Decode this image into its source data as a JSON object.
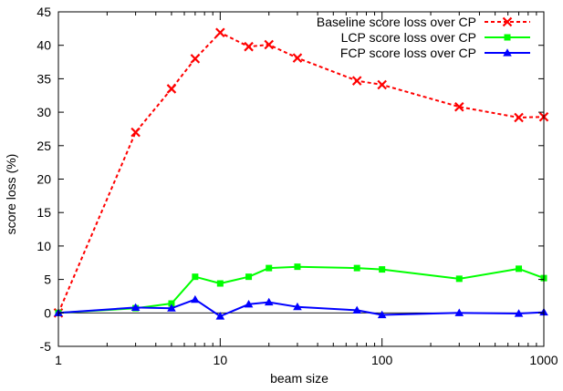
{
  "chart_data": {
    "type": "line",
    "xlabel": "beam size",
    "ylabel": "score loss (%)",
    "x_scale": "log",
    "xlim": [
      1,
      1000
    ],
    "ylim": [
      -5,
      45
    ],
    "x_ticks": [
      1,
      10,
      100,
      1000
    ],
    "x_tick_labels": [
      "1",
      "10",
      "100",
      "1000"
    ],
    "y_ticks": [
      -5,
      0,
      5,
      10,
      15,
      20,
      25,
      30,
      35,
      40,
      45
    ],
    "y_tick_labels": [
      "-5",
      "0",
      "5",
      "10",
      "15",
      "20",
      "25",
      "30",
      "35",
      "40",
      "45"
    ],
    "zero_line": true,
    "grid": false,
    "legend_position": "top-right",
    "series": [
      {
        "name": "Baseline score loss over CP",
        "color": "#ff0000",
        "marker": "x",
        "line_style": "dashed",
        "x": [
          1,
          3,
          5,
          7,
          10,
          15,
          20,
          30,
          70,
          100,
          300,
          700,
          1000
        ],
        "y": [
          0,
          27.0,
          33.5,
          38.0,
          41.9,
          39.8,
          40.1,
          38.1,
          34.7,
          34.1,
          30.8,
          29.2,
          29.3
        ]
      },
      {
        "name": "LCP score loss over CP",
        "color": "#00ff00",
        "marker": "square",
        "line_style": "solid",
        "x": [
          1,
          3,
          5,
          7,
          10,
          15,
          20,
          30,
          70,
          100,
          300,
          700,
          1000
        ],
        "y": [
          0,
          0.7,
          1.4,
          5.4,
          4.4,
          5.4,
          6.7,
          6.9,
          6.7,
          6.5,
          5.1,
          6.6,
          5.2
        ]
      },
      {
        "name": "FCP score loss over CP",
        "color": "#0000ff",
        "marker": "triangle",
        "line_style": "solid",
        "x": [
          1,
          3,
          5,
          7,
          10,
          15,
          20,
          30,
          70,
          100,
          300,
          700,
          1000
        ],
        "y": [
          0,
          0.8,
          0.7,
          2.0,
          -0.5,
          1.3,
          1.6,
          0.9,
          0.4,
          -0.3,
          0.0,
          -0.1,
          0.1
        ]
      }
    ]
  }
}
